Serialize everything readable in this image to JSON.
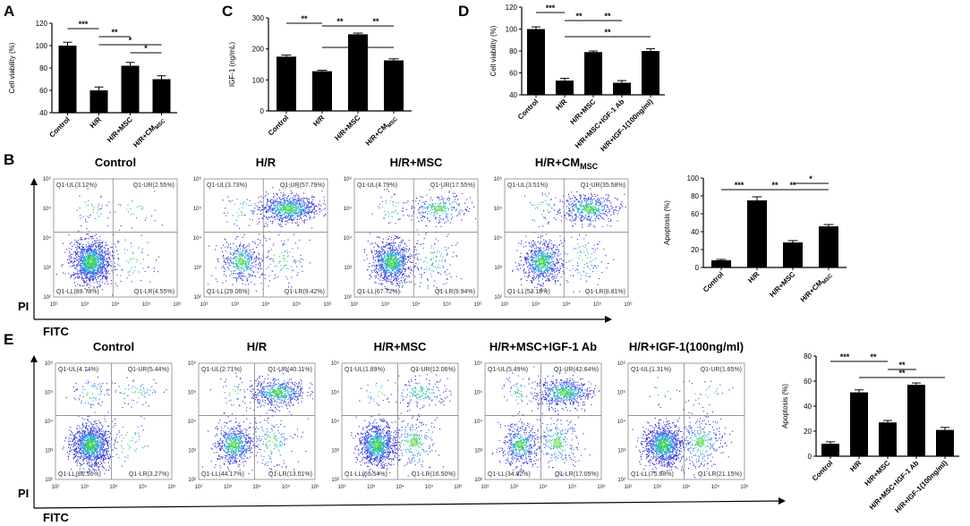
{
  "panels": {
    "A": "A",
    "B": "B",
    "C": "C",
    "D": "D",
    "E": "E"
  },
  "chart_data": [
    {
      "id": "A",
      "type": "bar",
      "ylabel": "Cell viability (%)",
      "ylim": [
        40,
        120
      ],
      "yticks": [
        "40",
        "60",
        "80",
        "100",
        "120"
      ],
      "categories": [
        "Control",
        "H/R",
        "H/R+MSC",
        "H/R+CM"
      ],
      "sub": {
        "3": "MSC"
      },
      "values": [
        100,
        60,
        82,
        70
      ],
      "errors": [
        3,
        3,
        3,
        3
      ],
      "sig": [
        {
          "from": 0,
          "to": 1,
          "label": "***",
          "level": 0
        },
        {
          "from": 1,
          "to": 2,
          "label": "**",
          "level": 1
        },
        {
          "from": 1,
          "to": 3,
          "label": "*",
          "level": 2
        },
        {
          "from": 2,
          "to": 3,
          "label": "*",
          "level": 3
        }
      ]
    },
    {
      "id": "C",
      "type": "bar",
      "ylabel": "IGF-1 (ng/mL)",
      "ylim": [
        0,
        300
      ],
      "yticks": [
        "0",
        "100",
        "200",
        "300"
      ],
      "categories": [
        "Control",
        "H/R",
        "H/R+MSC",
        "H/R+CM"
      ],
      "sub": {
        "3": "MSC"
      },
      "values": [
        175,
        128,
        247,
        163
      ],
      "errors": [
        5,
        3,
        4,
        5
      ],
      "sig": [
        {
          "from": 0,
          "to": 1,
          "label": "**",
          "level": 0
        },
        {
          "from": 1,
          "to": 2,
          "label": "**",
          "level": 2
        },
        {
          "from": 1,
          "to": 3,
          "label": "**",
          "level": 3
        },
        {
          "from": 2,
          "to": 3,
          "label": "**",
          "level": 1
        }
      ]
    },
    {
      "id": "D",
      "type": "bar",
      "ylabel": "Cell viability (%)",
      "ylim": [
        40,
        120
      ],
      "yticks": [
        "40",
        "60",
        "80",
        "100",
        "120"
      ],
      "categories": [
        "Control",
        "H/R",
        "H/R+MSC",
        "H/R+MSC+IGF-1 Ab",
        "H/R+IGF-1(100ng/ml)"
      ],
      "sub": {},
      "values": [
        100,
        53,
        79,
        51,
        80
      ],
      "errors": [
        2,
        2,
        1,
        2,
        2
      ],
      "sig": [
        {
          "from": 0,
          "to": 1,
          "label": "***",
          "level": 0
        },
        {
          "from": 1,
          "to": 2,
          "label": "**",
          "level": 1
        },
        {
          "from": 1,
          "to": 4,
          "label": "**",
          "level": 3
        },
        {
          "from": 2,
          "to": 3,
          "label": "**",
          "level": 1
        }
      ]
    },
    {
      "id": "B-bar",
      "type": "bar",
      "ylabel": "Apoptosis (%)",
      "ylim": [
        0,
        100
      ],
      "yticks": [
        "0",
        "20",
        "40",
        "60",
        "80",
        "100"
      ],
      "categories": [
        "Control",
        "H/R",
        "H/R+MSC",
        "H/R+CM"
      ],
      "sub": {
        "3": "MSC"
      },
      "values": [
        8,
        75,
        28,
        46
      ],
      "errors": [
        1,
        4,
        2,
        2
      ],
      "sig": [
        {
          "from": 0,
          "to": 1,
          "label": "***",
          "level": 1
        },
        {
          "from": 1,
          "to": 2,
          "label": "**",
          "level": 2
        },
        {
          "from": 1,
          "to": 3,
          "label": "**",
          "level": 1
        },
        {
          "from": 2,
          "to": 3,
          "label": "*",
          "level": 0
        }
      ]
    },
    {
      "id": "E-bar",
      "type": "bar",
      "ylabel": "Apoptosis (%)",
      "ylim": [
        0,
        80
      ],
      "yticks": [
        "0",
        "20",
        "40",
        "60",
        "80"
      ],
      "categories": [
        "Control",
        "H/R",
        "H/R+MSC",
        "H/R+MSC+IGF-1 Ab",
        "H/R+IGF-1(100ng/ml)"
      ],
      "sub": {},
      "values": [
        10,
        51,
        27,
        57,
        21
      ],
      "errors": [
        1.5,
        2,
        1.5,
        1.5,
        2
      ],
      "sig": [
        {
          "from": 0,
          "to": 1,
          "label": "***",
          "level": 0
        },
        {
          "from": 1,
          "to": 2,
          "label": "**",
          "level": 0
        },
        {
          "from": 1,
          "to": 4,
          "label": "**",
          "level": 2
        },
        {
          "from": 2,
          "to": 3,
          "label": "**",
          "level": 1
        }
      ]
    }
  ],
  "flow": {
    "x_axis": "FITC",
    "y_axis": "PI",
    "x_ticks": [
      "10²",
      "10³",
      "10⁴",
      "10⁵",
      "10⁶"
    ],
    "y_ticks": [
      "10²",
      "10³",
      "10⁴",
      "10⁵",
      "10⁶"
    ],
    "B": [
      {
        "title": "Control",
        "sub": "",
        "ul": "Q1-UL(3.12%)",
        "ur": "Q1-UR(2.55%)",
        "ll": "Q1-LL(89.78%)",
        "lr": "Q1-LR(4.55%)",
        "clusters": [
          0.9,
          0.02,
          0.03,
          0.05
        ]
      },
      {
        "title": "H/R",
        "sub": "",
        "ul": "Q1-UL(3.73%)",
        "ur": "Q1-UR(57.79%)",
        "ll": "Q1-LL(29.06%)",
        "lr": "Q1-LR(9.42%)",
        "clusters": [
          0.3,
          0.58,
          0.03,
          0.09
        ]
      },
      {
        "title": "H/R+MSC",
        "sub": "",
        "ul": "Q1-UL(4.79%)",
        "ur": "Q1-UR(17.55%)",
        "ll": "Q1-LL(67.72%)",
        "lr": "Q1-LR(9.94%)",
        "clusters": [
          0.68,
          0.18,
          0.04,
          0.1
        ]
      },
      {
        "title": "H/R+CM",
        "sub": "MSC",
        "ul": "Q1-UL(3.51%)",
        "ur": "Q1-UR(35.58%)",
        "ll": "Q1-LL(53.19%)",
        "lr": "Q1-LR(8.81%)",
        "clusters": [
          0.53,
          0.36,
          0.03,
          0.08
        ]
      }
    ],
    "E": [
      {
        "title": "Control",
        "sub": "",
        "ul": "Q1-UL(4.74%)",
        "ur": "Q1-UR(5.44%)",
        "ll": "Q1-LL(86.56%)",
        "lr": "Q1-LR(3.27%)",
        "clusters": [
          0.86,
          0.05,
          0.05,
          0.04
        ]
      },
      {
        "title": "H/R",
        "sub": "",
        "ul": "Q1-UL(2.71%)",
        "ur": "Q1-UR(40.11%)",
        "ll": "Q1-LL(44.17%)",
        "lr": "Q1-LR(13.01%)",
        "clusters": [
          0.44,
          0.4,
          0.03,
          0.13
        ]
      },
      {
        "title": "H/R+MSC",
        "sub": "",
        "ul": "Q1-UL(1.89%)",
        "ur": "Q1-UR(12.06%)",
        "ll": "Q1-LL(69.54%)",
        "lr": "Q1-LR(16.50%)",
        "clusters": [
          0.7,
          0.12,
          0.02,
          0.16
        ]
      },
      {
        "title": "H/R+MSC+IGF-1 Ab",
        "sub": "",
        "ul": "Q1-UL(5.49%)",
        "ur": "Q1-UR(42.64%)",
        "ll": "Q1-LL(34.82%)",
        "lr": "Q1-LR(17.05%)",
        "clusters": [
          0.35,
          0.43,
          0.05,
          0.17
        ]
      },
      {
        "title": "H/R+IGF-1(100ng/ml)",
        "sub": "",
        "ul": "Q1-UL(1.31%)",
        "ur": "Q1-UR(1.65%)",
        "ll": "Q1-LL(75.88%)",
        "lr": "Q1-LR(21.15%)",
        "clusters": [
          0.76,
          0.02,
          0.01,
          0.21
        ]
      }
    ]
  }
}
